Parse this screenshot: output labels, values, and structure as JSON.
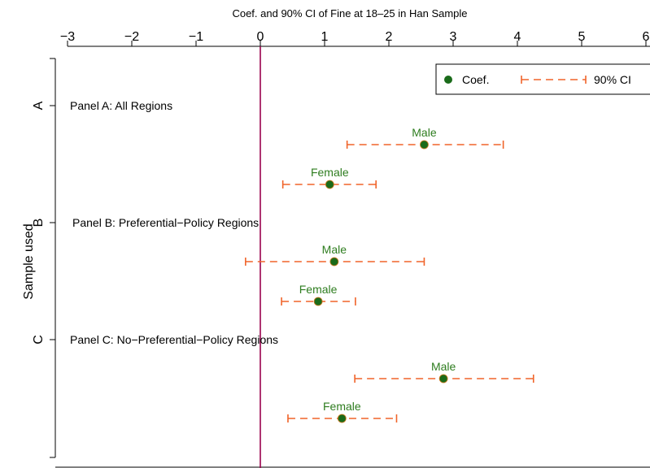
{
  "chart_data": {
    "type": "scatter",
    "title": "Coef. and 90% CI of Fine at 18–25 in Han Sample",
    "xlabel": "",
    "ylabel": "Sample used",
    "xlim": [
      -3.5,
      6.0
    ],
    "xticks": [
      "−3",
      "−2",
      "−1",
      "0",
      "1",
      "2",
      "3",
      "4",
      "5",
      "6"
    ],
    "xtick_values": [
      -3,
      -2,
      -1,
      0,
      1,
      2,
      3,
      4,
      5,
      6
    ],
    "yticks": [
      "A",
      "B",
      "C"
    ],
    "reference_line_x": 0,
    "grid": false,
    "legend": {
      "placement": "top-right",
      "entries": [
        "Coef.",
        "90% CI"
      ]
    },
    "colors": {
      "coef": "#1a6b1a",
      "ci": "#f0642a",
      "label": "#2e7d1f",
      "refline": "#99004d"
    },
    "panels": [
      {
        "tick": "A",
        "label": "Panel A: All Regions",
        "estimates": [
          {
            "group": "Male",
            "coef": 2.55,
            "ci_low": 1.35,
            "ci_high": 3.78
          },
          {
            "group": "Female",
            "coef": 1.08,
            "ci_low": 0.35,
            "ci_high": 1.8
          }
        ]
      },
      {
        "tick": "B",
        "label": "Panel B: Preferential−Policy Regions",
        "estimates": [
          {
            "group": "Male",
            "coef": 1.15,
            "ci_low": -0.23,
            "ci_high": 2.55
          },
          {
            "group": "Female",
            "coef": 0.9,
            "ci_low": 0.33,
            "ci_high": 1.48
          }
        ]
      },
      {
        "tick": "C",
        "label": "Panel C: No−Preferential−Policy Regions",
        "estimates": [
          {
            "group": "Male",
            "coef": 2.85,
            "ci_low": 1.47,
            "ci_high": 4.25
          },
          {
            "group": "Female",
            "coef": 1.27,
            "ci_low": 0.43,
            "ci_high": 2.12
          }
        ]
      }
    ]
  }
}
